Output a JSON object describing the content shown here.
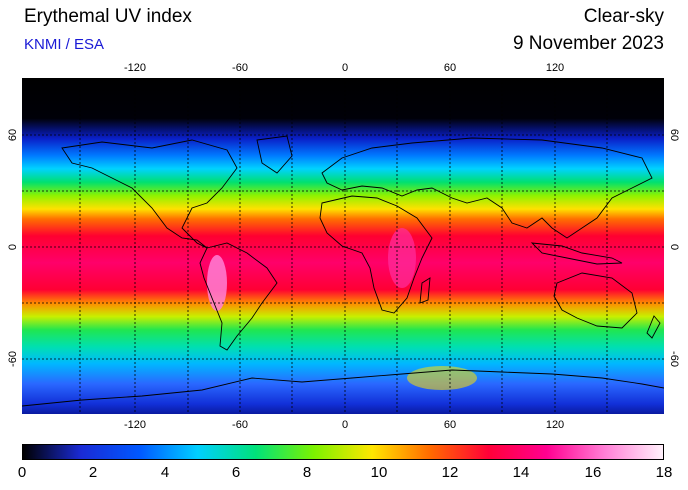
{
  "header": {
    "title": "Erythemal UV index",
    "subtitle": "KNMI / ESA",
    "mode": "Clear-sky",
    "date": "9 November 2023"
  },
  "map": {
    "lon_ticks": [
      "-120",
      "-60",
      "0",
      "60",
      "120"
    ],
    "lat_ticks": [
      "60",
      "0",
      "-60"
    ],
    "graticule": {
      "lon_step_deg": 30,
      "lat_step_deg": 30,
      "style": "dotted"
    }
  },
  "colorbar": {
    "ticks": [
      "0",
      "2",
      "4",
      "6",
      "8",
      "10",
      "12",
      "14",
      "16",
      "18"
    ],
    "range": [
      0,
      18
    ],
    "colors": [
      "#000000",
      "#1a2bd6",
      "#0058ff",
      "#00cfff",
      "#00e27a",
      "#7cf200",
      "#ffe600",
      "#ff6a00",
      "#ff0038",
      "#ff0090",
      "#ff7fd6",
      "#fff1fb"
    ]
  }
}
